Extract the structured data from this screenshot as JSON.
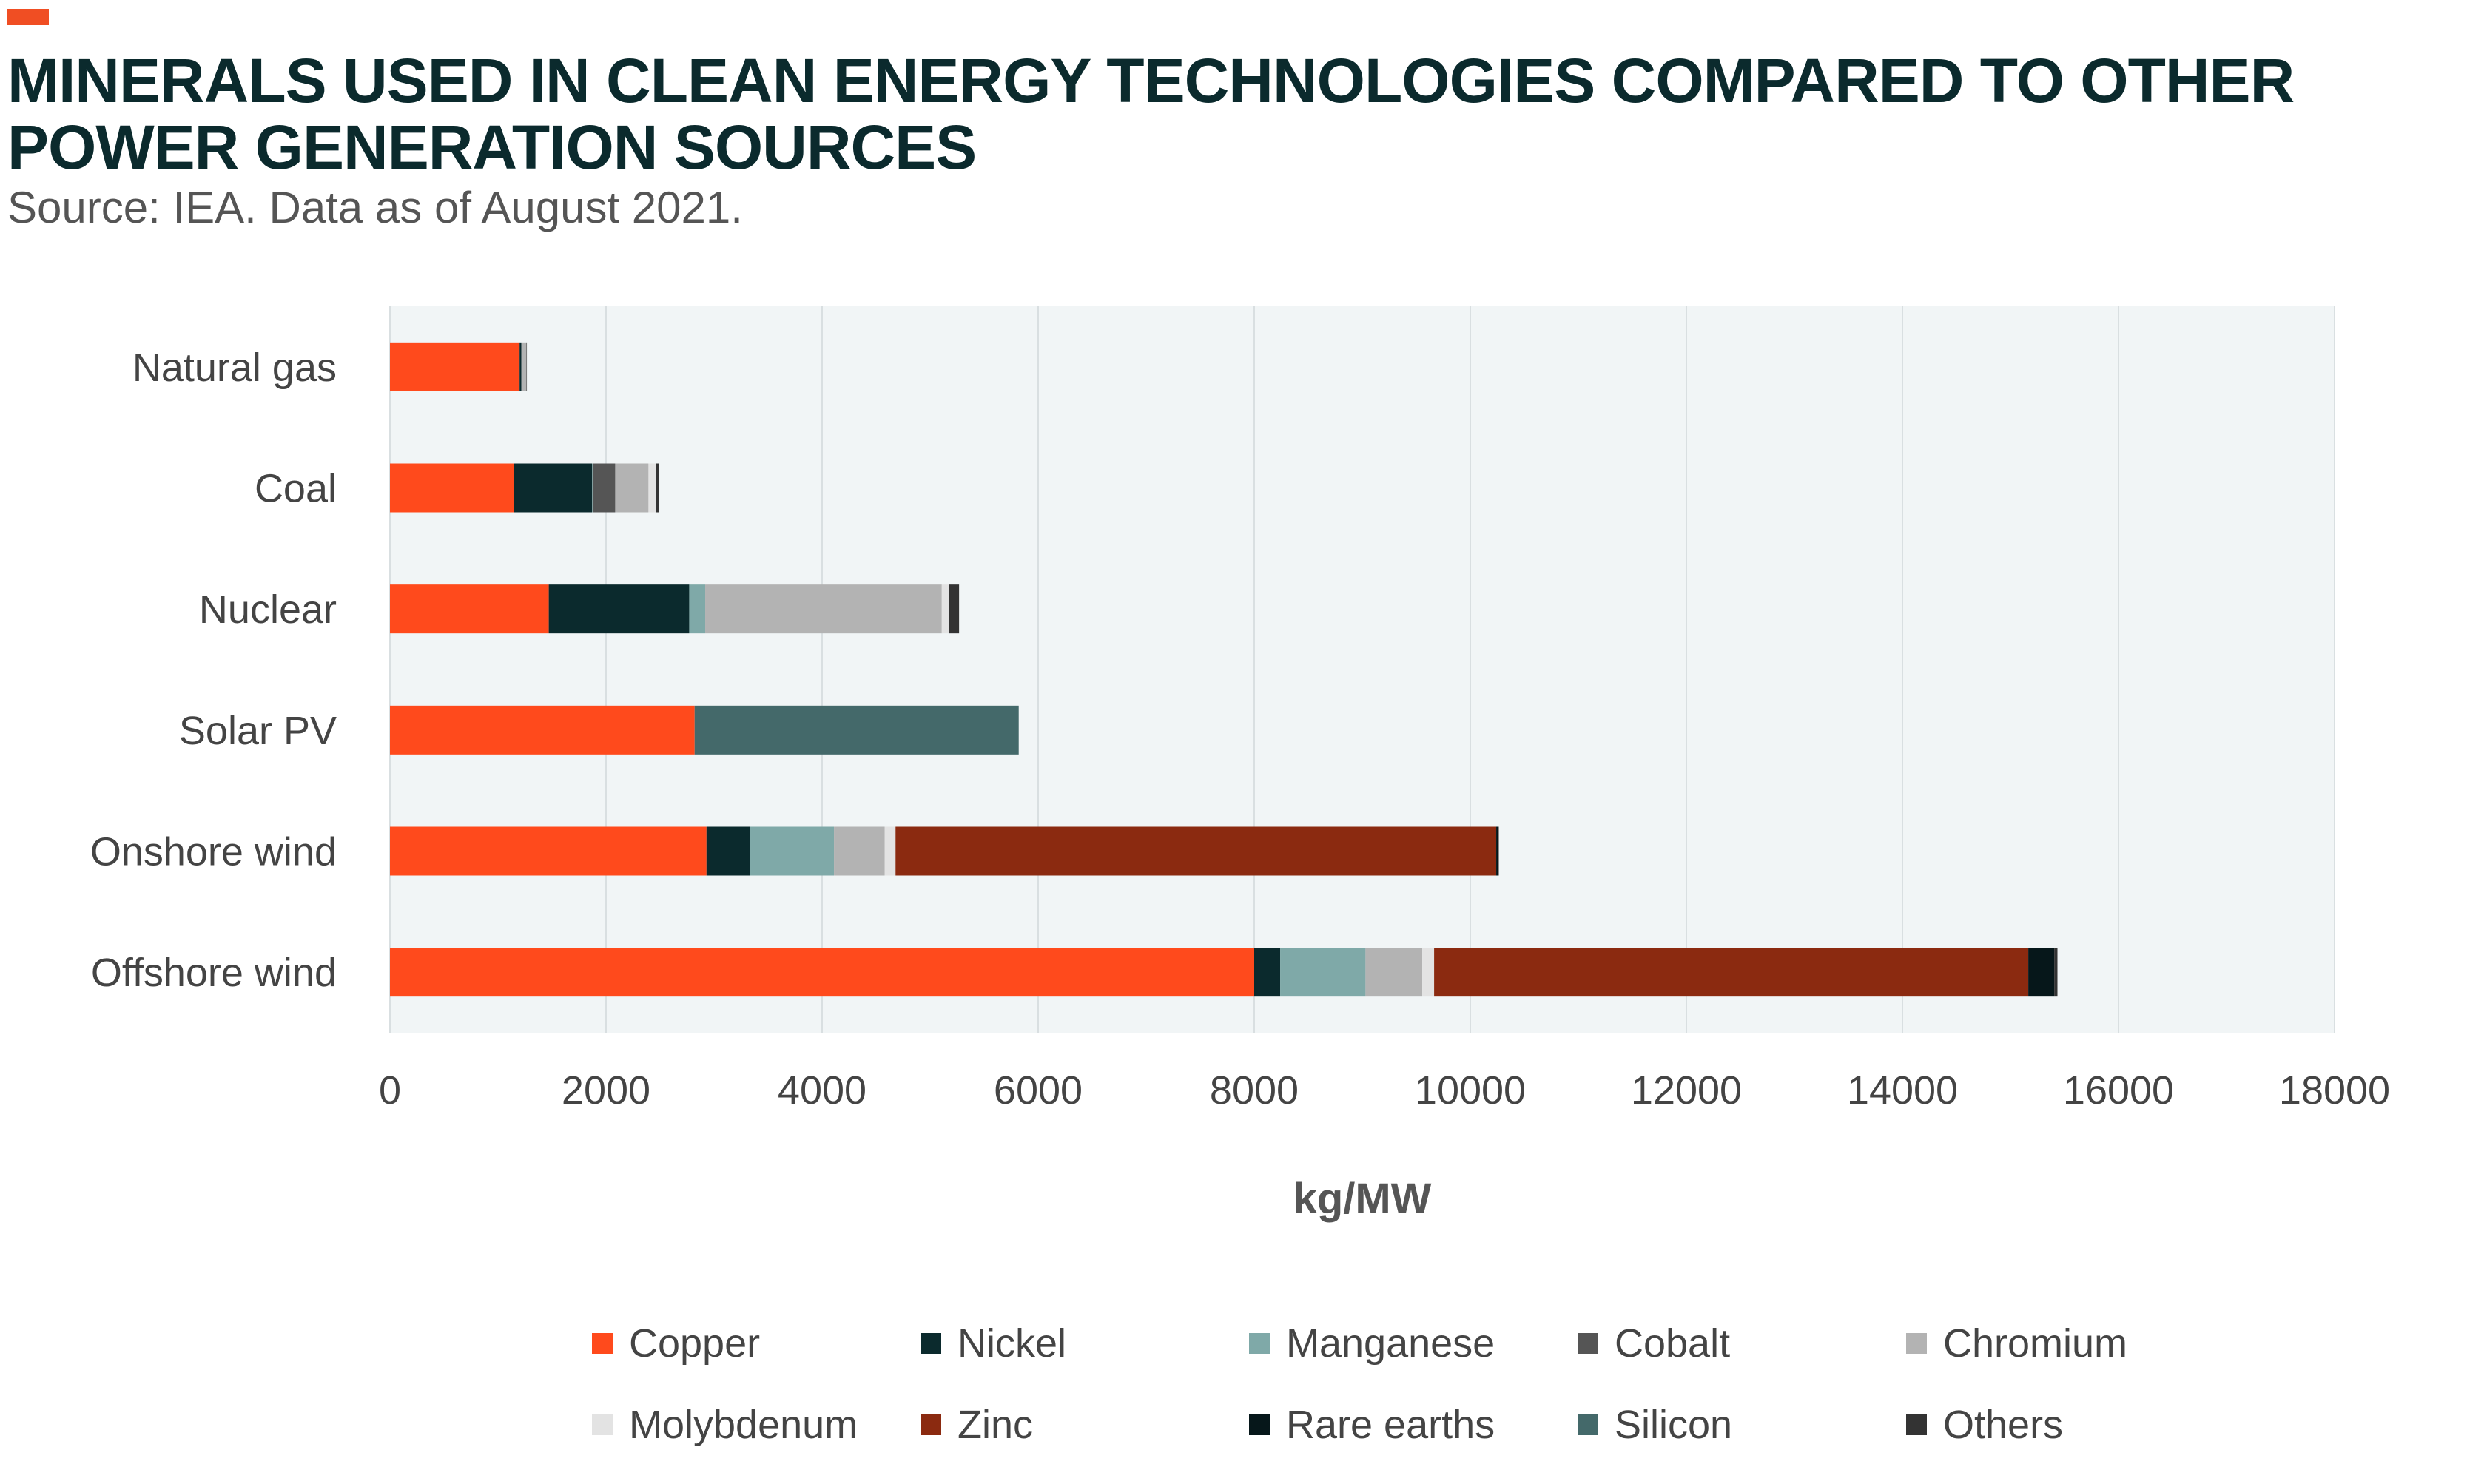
{
  "header": {
    "title": "MINERALS USED IN CLEAN ENERGY TECHNOLOGIES COMPARED TO OTHER POWER GENERATION SOURCES",
    "subtitle": "Source: IEA. Data as of August 2021."
  },
  "colors": {
    "accent": "#f04e23",
    "plot_background": "#f1f5f6",
    "gridline": "#d9dfe1"
  },
  "chart_data": {
    "type": "bar",
    "orientation": "horizontal",
    "stacked": true,
    "categories": [
      "Natural gas",
      "Coal",
      "Nuclear",
      "Solar PV",
      "Onshore wind",
      "Offshore wind"
    ],
    "xlabel": "kg/MW",
    "ylabel": "",
    "xlim": [
      0,
      18000
    ],
    "xticks": [
      0,
      2000,
      4000,
      6000,
      8000,
      10000,
      12000,
      14000,
      16000,
      18000
    ],
    "grid": true,
    "legend_position": "bottom",
    "series": [
      {
        "name": "Copper",
        "color": "#ff4a1c",
        "values": [
          1200,
          1150,
          1470,
          2820,
          2930,
          8000
        ]
      },
      {
        "name": "Nickel",
        "color": "#0b2a2d",
        "values": [
          16,
          720,
          1300,
          0,
          400,
          240
        ]
      },
      {
        "name": "Manganese",
        "color": "#7fa9a8",
        "values": [
          0,
          5,
          148,
          0,
          780,
          790
        ]
      },
      {
        "name": "Cobalt",
        "color": "#555555",
        "values": [
          0,
          210,
          0,
          0,
          0,
          0
        ]
      },
      {
        "name": "Chromium",
        "color": "#b3b3b3",
        "values": [
          48,
          308,
          2190,
          0,
          470,
          525
        ]
      },
      {
        "name": "Molybdenum",
        "color": "#e3e3e3",
        "values": [
          0,
          66,
          70,
          0,
          100,
          110
        ]
      },
      {
        "name": "Zinc",
        "color": "#8b2a10",
        "values": [
          0,
          0,
          0,
          0,
          5560,
          5500
        ]
      },
      {
        "name": "Rare earths",
        "color": "#06171a",
        "values": [
          0,
          0,
          0,
          0,
          14,
          240
        ]
      },
      {
        "name": "Silicon",
        "color": "#44696a",
        "values": [
          0,
          0,
          0,
          3000,
          0,
          0
        ]
      },
      {
        "name": "Others",
        "color": "#333333",
        "values": [
          2,
          30,
          90,
          0,
          10,
          30
        ]
      }
    ]
  }
}
